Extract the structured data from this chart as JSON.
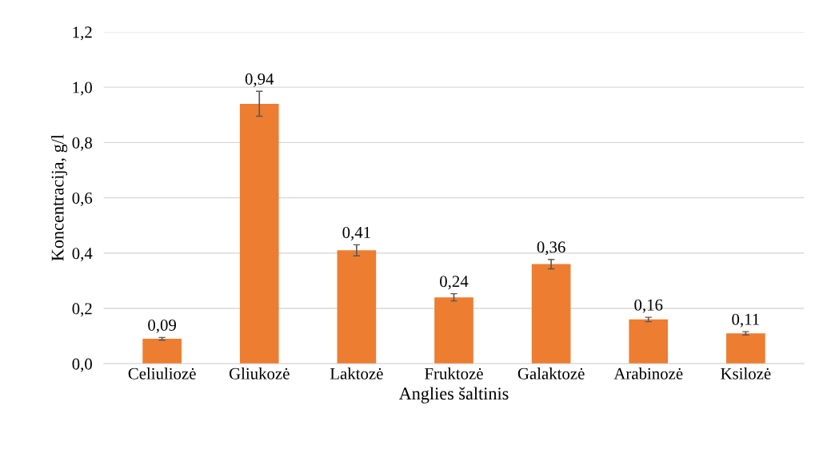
{
  "chart_data": {
    "type": "bar",
    "xlabel": "Anglies šaltinis",
    "ylabel": "Koncentracija, g/l",
    "categories": [
      "Celiuliozė",
      "Gliukozė",
      "Laktozė",
      "Fruktozė",
      "Galaktozė",
      "Arabinozė",
      "Ksilozė"
    ],
    "values": [
      0.09,
      0.94,
      0.41,
      0.24,
      0.36,
      0.16,
      0.11
    ],
    "errors": [
      0.005,
      0.045,
      0.02,
      0.013,
      0.017,
      0.008,
      0.006
    ],
    "value_labels": [
      "0,09",
      "0,94",
      "0,41",
      "0,24",
      "0,36",
      "0,16",
      "0,11"
    ],
    "color": "#ed7d31",
    "ylim": [
      0,
      1.2
    ],
    "yticks": [
      {
        "value": 0,
        "label": "0,0"
      },
      {
        "value": 0.2,
        "label": "0,2"
      },
      {
        "value": 0.4,
        "label": "0,4"
      },
      {
        "value": 0.6,
        "label": "0,6"
      },
      {
        "value": 0.8,
        "label": "0,8"
      },
      {
        "value": 1.0,
        "label": "1,0"
      },
      {
        "value": 1.2,
        "label": "1,2"
      }
    ],
    "grid": "y"
  }
}
